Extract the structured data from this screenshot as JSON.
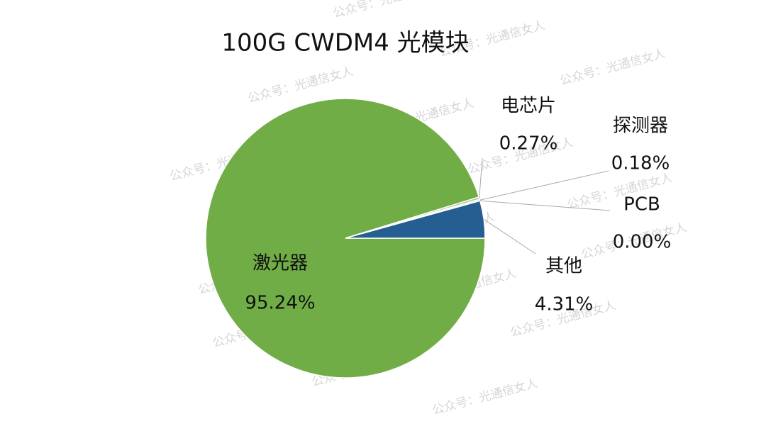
{
  "chart_data": {
    "type": "pie",
    "title": "100G CWDM4 光模块",
    "categories": [
      "激光器",
      "电芯片",
      "探测器",
      "PCB",
      "其他"
    ],
    "values": [
      95.24,
      0.27,
      0.18,
      0.0,
      4.31
    ],
    "value_labels": [
      "95.24%",
      "0.27%",
      "0.18%",
      "0.00%",
      "4.31%"
    ],
    "colors": [
      "#70ad47",
      "#a9c98f",
      "#dfe6ef",
      "#cfd8e3",
      "#255e91"
    ]
  },
  "watermark": "公众号：光通信女人"
}
